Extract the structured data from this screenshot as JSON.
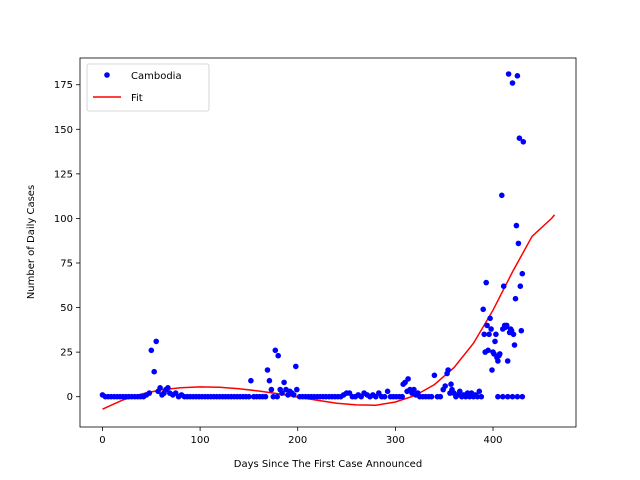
{
  "chart_data": {
    "type": "scatter",
    "title": "",
    "xlabel": "Days Since The First Case Announced",
    "ylabel": "Number of Daily Cases",
    "xlim": [
      -23,
      485
    ],
    "ylim": [
      -17,
      190
    ],
    "xticks": [
      0,
      100,
      200,
      300,
      400
    ],
    "yticks": [
      0,
      25,
      50,
      75,
      100,
      125,
      150,
      175
    ],
    "grid": false,
    "legend_position": "top-left",
    "series": [
      {
        "name": "Cambodia",
        "kind": "markers",
        "color": "#0000ff",
        "points": [
          [
            0,
            1
          ],
          [
            3,
            0
          ],
          [
            6,
            0
          ],
          [
            9,
            0
          ],
          [
            12,
            0
          ],
          [
            15,
            0
          ],
          [
            18,
            0
          ],
          [
            21,
            0
          ],
          [
            24,
            0
          ],
          [
            27,
            0
          ],
          [
            30,
            0
          ],
          [
            33,
            0
          ],
          [
            36,
            0
          ],
          [
            39,
            0
          ],
          [
            42,
            0
          ],
          [
            45,
            1
          ],
          [
            48,
            2
          ],
          [
            50,
            26
          ],
          [
            53,
            14
          ],
          [
            55,
            31
          ],
          [
            57,
            3
          ],
          [
            59,
            5
          ],
          [
            61,
            1
          ],
          [
            63,
            2
          ],
          [
            65,
            4
          ],
          [
            67,
            5
          ],
          [
            69,
            2
          ],
          [
            72,
            1
          ],
          [
            75,
            2
          ],
          [
            78,
            0
          ],
          [
            81,
            1
          ],
          [
            84,
            0
          ],
          [
            87,
            0
          ],
          [
            90,
            0
          ],
          [
            93,
            0
          ],
          [
            96,
            0
          ],
          [
            99,
            0
          ],
          [
            102,
            0
          ],
          [
            105,
            0
          ],
          [
            108,
            0
          ],
          [
            111,
            0
          ],
          [
            114,
            0
          ],
          [
            117,
            0
          ],
          [
            120,
            0
          ],
          [
            123,
            0
          ],
          [
            126,
            0
          ],
          [
            129,
            0
          ],
          [
            132,
            0
          ],
          [
            135,
            0
          ],
          [
            138,
            0
          ],
          [
            141,
            0
          ],
          [
            144,
            0
          ],
          [
            147,
            0
          ],
          [
            150,
            0
          ],
          [
            152,
            9
          ],
          [
            155,
            0
          ],
          [
            158,
            0
          ],
          [
            161,
            0
          ],
          [
            164,
            0
          ],
          [
            167,
            0
          ],
          [
            169,
            15
          ],
          [
            171,
            9
          ],
          [
            173,
            4
          ],
          [
            175,
            0
          ],
          [
            177,
            26
          ],
          [
            179,
            0
          ],
          [
            180,
            23
          ],
          [
            182,
            4
          ],
          [
            184,
            2
          ],
          [
            186,
            8
          ],
          [
            188,
            4
          ],
          [
            190,
            1
          ],
          [
            192,
            3
          ],
          [
            194,
            2
          ],
          [
            196,
            1
          ],
          [
            198,
            17
          ],
          [
            199,
            4
          ],
          [
            202,
            0
          ],
          [
            205,
            0
          ],
          [
            208,
            0
          ],
          [
            211,
            0
          ],
          [
            214,
            0
          ],
          [
            217,
            0
          ],
          [
            220,
            0
          ],
          [
            223,
            0
          ],
          [
            226,
            0
          ],
          [
            229,
            0
          ],
          [
            232,
            0
          ],
          [
            235,
            0
          ],
          [
            238,
            0
          ],
          [
            241,
            0
          ],
          [
            244,
            0
          ],
          [
            247,
            1
          ],
          [
            250,
            2
          ],
          [
            253,
            2
          ],
          [
            256,
            0
          ],
          [
            259,
            0
          ],
          [
            262,
            1
          ],
          [
            265,
            0
          ],
          [
            268,
            2
          ],
          [
            271,
            1
          ],
          [
            274,
            0
          ],
          [
            277,
            1
          ],
          [
            280,
            0
          ],
          [
            283,
            2
          ],
          [
            286,
            0
          ],
          [
            289,
            0
          ],
          [
            292,
            3
          ],
          [
            295,
            0
          ],
          [
            298,
            0
          ],
          [
            301,
            0
          ],
          [
            304,
            0
          ],
          [
            307,
            0
          ],
          [
            308,
            7
          ],
          [
            310,
            8
          ],
          [
            312,
            3
          ],
          [
            313,
            10
          ],
          [
            315,
            4
          ],
          [
            317,
            2
          ],
          [
            319,
            4
          ],
          [
            321,
            1
          ],
          [
            323,
            2
          ],
          [
            325,
            0
          ],
          [
            328,
            0
          ],
          [
            331,
            0
          ],
          [
            334,
            0
          ],
          [
            337,
            0
          ],
          [
            340,
            12
          ],
          [
            343,
            0
          ],
          [
            346,
            0
          ],
          [
            349,
            4
          ],
          [
            351,
            6
          ],
          [
            353,
            13
          ],
          [
            354,
            15
          ],
          [
            356,
            2
          ],
          [
            357,
            7
          ],
          [
            358,
            4
          ],
          [
            360,
            2
          ],
          [
            362,
            0
          ],
          [
            364,
            1
          ],
          [
            366,
            3
          ],
          [
            368,
            0
          ],
          [
            370,
            1
          ],
          [
            372,
            0
          ],
          [
            374,
            2
          ],
          [
            376,
            0
          ],
          [
            378,
            2
          ],
          [
            380,
            0
          ],
          [
            382,
            1
          ],
          [
            384,
            0
          ],
          [
            386,
            3
          ],
          [
            388,
            0
          ],
          [
            390,
            49
          ],
          [
            391,
            35
          ],
          [
            392,
            25
          ],
          [
            393,
            64
          ],
          [
            394,
            40
          ],
          [
            395,
            26
          ],
          [
            396,
            35
          ],
          [
            397,
            44
          ],
          [
            398,
            38
          ],
          [
            399,
            15
          ],
          [
            400,
            25
          ],
          [
            401,
            24
          ],
          [
            402,
            31
          ],
          [
            403,
            35
          ],
          [
            404,
            22
          ],
          [
            405,
            20
          ],
          [
            406,
            23
          ],
          [
            407,
            24
          ],
          [
            409,
            113
          ],
          [
            410,
            38
          ],
          [
            411,
            62
          ],
          [
            412,
            40
          ],
          [
            413,
            39
          ],
          [
            414,
            40
          ],
          [
            415,
            20
          ],
          [
            416,
            181
          ],
          [
            417,
            36
          ],
          [
            418,
            38
          ],
          [
            419,
            37
          ],
          [
            420,
            176
          ],
          [
            421,
            35
          ],
          [
            422,
            29
          ],
          [
            423,
            55
          ],
          [
            424,
            96
          ],
          [
            425,
            180
          ],
          [
            426,
            86
          ],
          [
            427,
            145
          ],
          [
            428,
            62
          ],
          [
            429,
            37
          ],
          [
            430,
            69
          ],
          [
            431,
            143
          ],
          [
            405,
            0
          ],
          [
            410,
            0
          ],
          [
            415,
            0
          ],
          [
            420,
            0
          ],
          [
            425,
            0
          ],
          [
            430,
            0
          ]
        ]
      },
      {
        "name": "Fit",
        "kind": "line",
        "color": "#ff0000",
        "x": [
          0,
          20,
          40,
          60,
          80,
          100,
          120,
          140,
          160,
          180,
          200,
          220,
          240,
          260,
          280,
          300,
          320,
          340,
          360,
          380,
          400,
          420,
          440,
          460,
          463
        ],
        "y": [
          -7,
          -2,
          1.5,
          3.8,
          5,
          5.5,
          5.3,
          4.5,
          3.2,
          1.6,
          -0.2,
          -2,
          -3.7,
          -4.6,
          -4.8,
          -3,
          0.6,
          6.8,
          16.3,
          30,
          48.5,
          70,
          90,
          100,
          102
        ]
      }
    ]
  }
}
